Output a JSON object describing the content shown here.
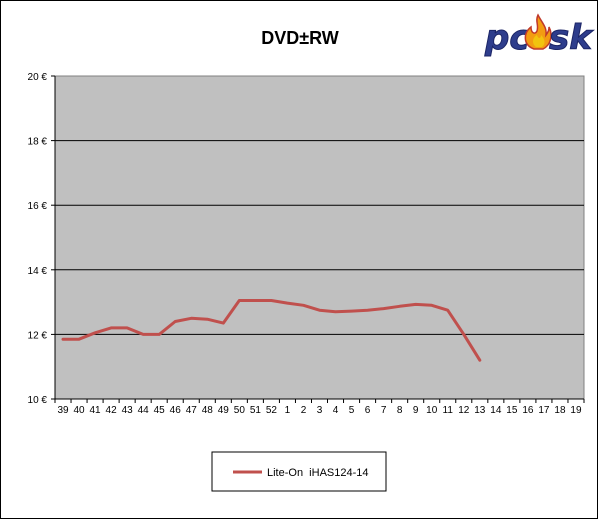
{
  "chart_data": {
    "type": "line",
    "title": "DVD±RW",
    "xlabel": "",
    "ylabel": "",
    "categories": [
      "39",
      "40",
      "41",
      "42",
      "43",
      "44",
      "45",
      "46",
      "47",
      "48",
      "49",
      "50",
      "51",
      "52",
      "1",
      "2",
      "3",
      "4",
      "5",
      "6",
      "7",
      "8",
      "9",
      "10",
      "11",
      "12",
      "13",
      "14",
      "15",
      "16",
      "17",
      "18",
      "19"
    ],
    "ylim": [
      10,
      20
    ],
    "yticks": [
      10,
      12,
      14,
      16,
      18,
      20
    ],
    "ytick_labels": [
      "10 €",
      "12 €",
      "14 €",
      "16 €",
      "18 €",
      "20 €"
    ],
    "grid": true,
    "legend_position": "bottom",
    "series": [
      {
        "name": "Lite-On  iHAS124-14",
        "color": "#c0504d",
        "values": [
          11.85,
          11.85,
          12.05,
          12.2,
          12.2,
          12.0,
          12.0,
          12.4,
          12.5,
          12.47,
          12.35,
          13.05,
          13.05,
          13.05,
          12.97,
          12.9,
          12.75,
          12.7,
          12.72,
          12.75,
          12.8,
          12.87,
          12.93,
          12.9,
          12.75,
          12.0,
          11.2,
          null,
          null,
          null,
          null,
          null,
          null
        ]
      }
    ],
    "plot_background": "#c0c0c0"
  },
  "logo": {
    "text": "pcask"
  }
}
